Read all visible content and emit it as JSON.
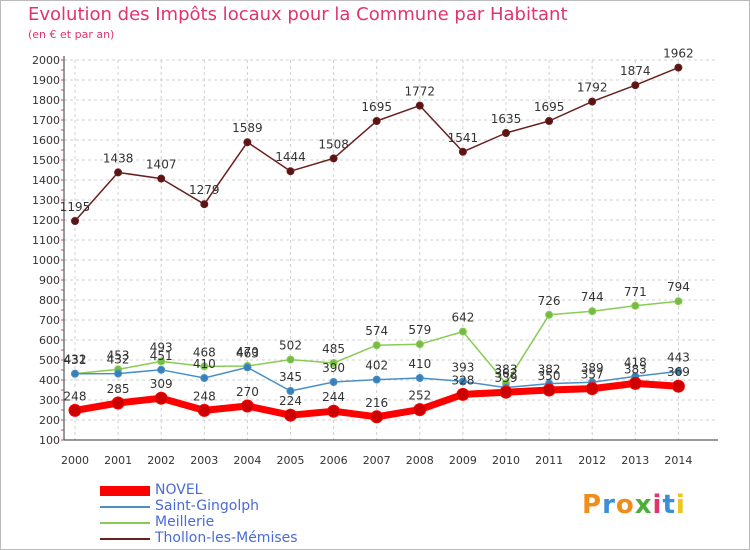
{
  "header": {
    "title": "Evolution des Impôts locaux pour la Commune par Habitant",
    "subtitle": "(en € et par an)"
  },
  "logo": {
    "text": "Proxiti"
  },
  "colors": {
    "NOVEL": "#ff0000",
    "Saint-Gingolph": "#4a90c8",
    "Meillerie": "#88cc55",
    "Thollon-les-Mémises": "#6b1f1f",
    "title": "#e23371",
    "legend_text": "#4a6bd6"
  },
  "chart_data": {
    "type": "line",
    "title": "Evolution des Impôts locaux pour la Commune par Habitant",
    "subtitle": "(en € et par an)",
    "xlabel": "",
    "ylabel": "",
    "ylim": [
      100,
      2000
    ],
    "yticks": [
      100,
      200,
      300,
      400,
      500,
      600,
      700,
      800,
      900,
      1000,
      1100,
      1200,
      1300,
      1400,
      1500,
      1600,
      1700,
      1800,
      1900,
      2000
    ],
    "grid": true,
    "legend_position": "bottom-left",
    "x": [
      "2000",
      "2001",
      "2002",
      "2003",
      "2004",
      "2005",
      "2006",
      "2007",
      "2008",
      "2009",
      "2010",
      "2011",
      "2012",
      "2013",
      "2014"
    ],
    "series": [
      {
        "name": "Thollon-les-Mémises",
        "values": [
          1195,
          1438,
          1407,
          1279,
          1589,
          1444,
          1508,
          1695,
          1772,
          1541,
          1635,
          1695,
          1792,
          1874,
          1962
        ]
      },
      {
        "name": "Meillerie",
        "values": [
          432,
          453,
          493,
          468,
          470,
          502,
          485,
          574,
          579,
          642,
          383,
          726,
          744,
          771,
          794
        ]
      },
      {
        "name": "Saint-Gingolph",
        "values": [
          431,
          432,
          451,
          410,
          463,
          345,
          390,
          402,
          410,
          393,
          362,
          382,
          389,
          418,
          443
        ]
      },
      {
        "name": "NOVEL",
        "values": [
          248,
          285,
          309,
          248,
          270,
          224,
          244,
          216,
          252,
          328,
          339,
          350,
          357,
          383,
          369
        ]
      }
    ]
  }
}
